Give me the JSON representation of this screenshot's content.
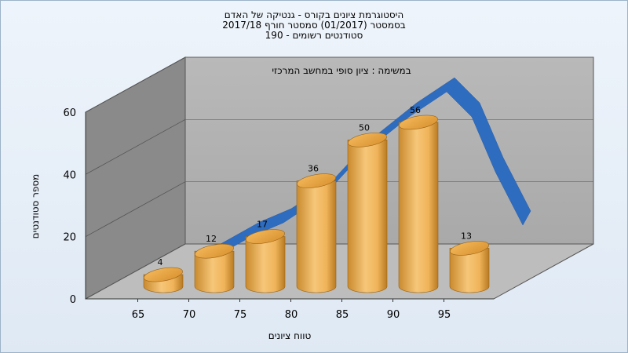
{
  "chart_data": {
    "type": "bar",
    "title_lines": [
      "היסטוגרמת ציונים בקורס - גנטיקה של האדם",
      "בסמסטר  (01/2017)  סמסטר חורף 2017/18",
      "סטודנטים רשומים - 190"
    ],
    "subtitle": "במשימה : ציון סופי במחשב המרכזי",
    "xlabel": "טווח ציונים",
    "ylabel": "מספר סטודנטים",
    "categories": [
      "65",
      "70",
      "75",
      "80",
      "85",
      "90",
      "95"
    ],
    "x_tick_labels": [
      "65",
      "70",
      "75",
      "80",
      "85",
      "90",
      "95"
    ],
    "values": [
      4,
      12,
      17,
      36,
      50,
      56,
      13
    ],
    "y_ticks": [
      0,
      20,
      40,
      60
    ],
    "ylim": [
      0,
      60
    ],
    "grid": true,
    "bar_color": "#e9a94a",
    "curve_color": "#2e6cbf"
  }
}
